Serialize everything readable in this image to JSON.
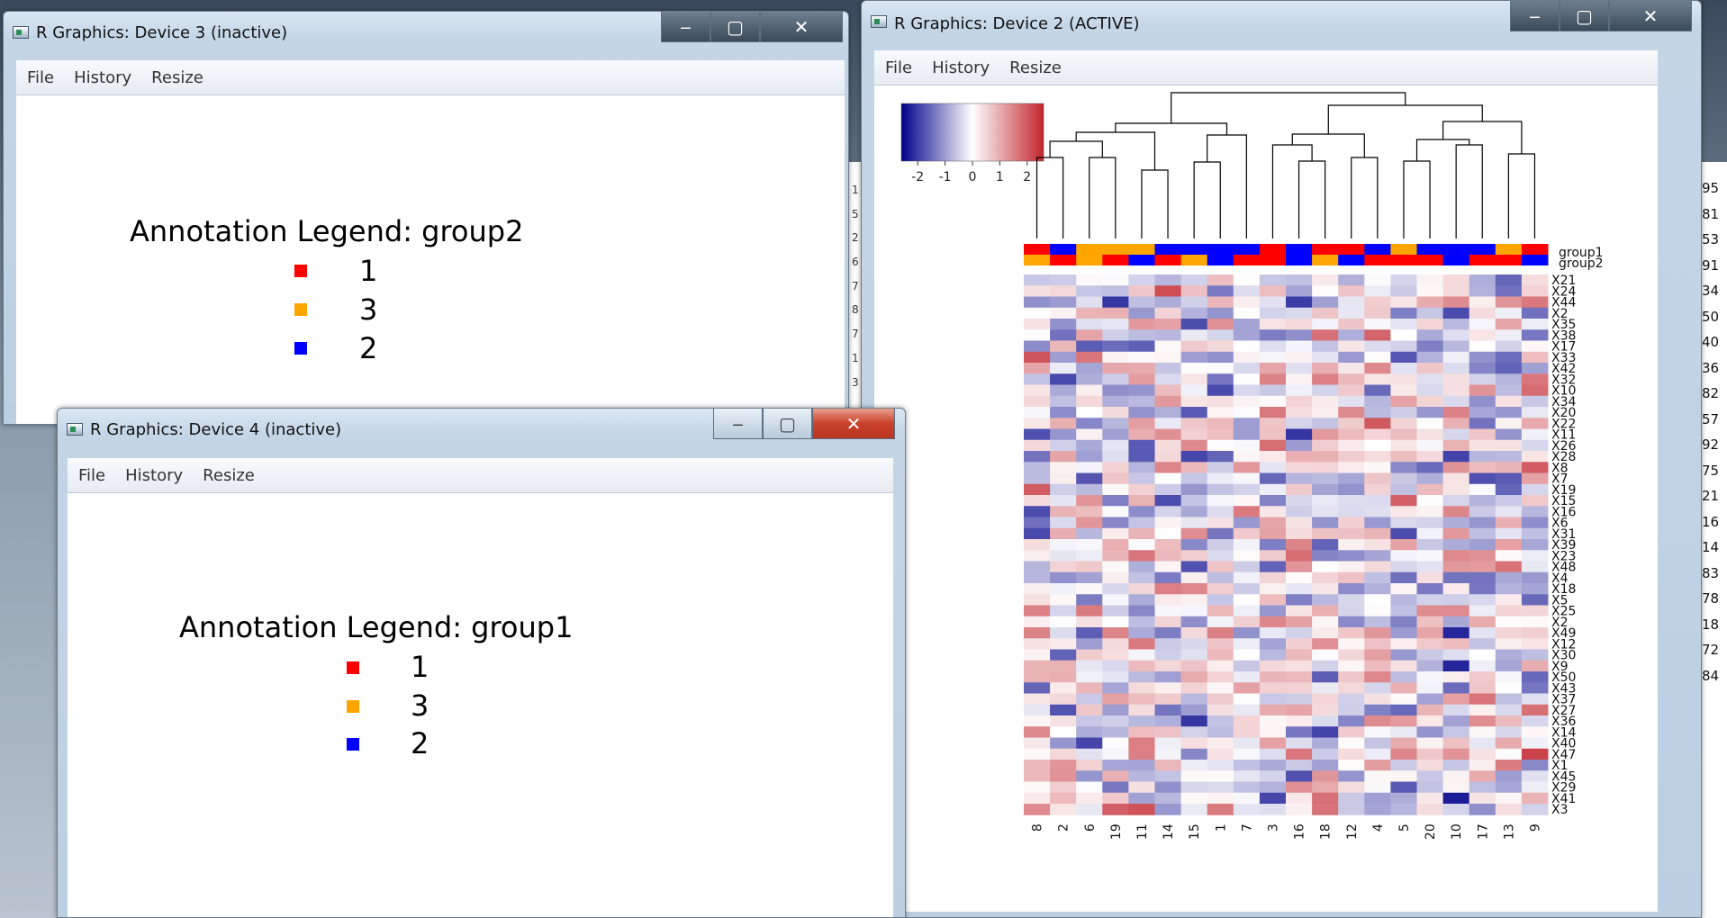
{
  "windows": {
    "device3": {
      "title": "R Graphics: Device 3 (inactive)",
      "menu": [
        "File",
        "History",
        "Resize"
      ],
      "legend": {
        "title": "Annotation Legend: group2",
        "items": [
          {
            "label": "1",
            "color": "#ff0000"
          },
          {
            "label": "3",
            "color": "#ffa500"
          },
          {
            "label": "2",
            "color": "#0000ff"
          }
        ]
      }
    },
    "device4": {
      "title": "R Graphics: Device 4 (inactive)",
      "menu": [
        "File",
        "History",
        "Resize"
      ],
      "legend": {
        "title": "Annotation Legend: group1",
        "items": [
          {
            "label": "1",
            "color": "#ff0000"
          },
          {
            "label": "3",
            "color": "#ffa500"
          },
          {
            "label": "2",
            "color": "#0000ff"
          }
        ]
      }
    },
    "device2": {
      "title": "R Graphics: Device 2 (ACTIVE)",
      "menu": [
        "File",
        "History",
        "Resize"
      ]
    }
  },
  "background_numbers_right": [
    "95",
    "81",
    "53",
    "91",
    "34",
    "50",
    "40",
    "36",
    "82",
    "57",
    "92",
    "75",
    "21",
    "16",
    "14",
    "83",
    "78",
    "18",
    "72",
    "84"
  ],
  "background_numbers_left": [
    "1",
    "5",
    "2",
    "6",
    "7",
    "8",
    "7",
    "1",
    "3"
  ],
  "chart_data": {
    "type": "heatmap",
    "color_scale": {
      "ticks": [
        -2,
        -1,
        0,
        1,
        2
      ],
      "low": "#00008b",
      "mid": "#ffffff",
      "high": "#c2262e"
    },
    "columns": [
      "8",
      "2",
      "6",
      "19",
      "11",
      "14",
      "15",
      "1",
      "7",
      "3",
      "16",
      "18",
      "12",
      "4",
      "5",
      "20",
      "10",
      "17",
      "13",
      "9"
    ],
    "rows": [
      "X21",
      "X24",
      "X44",
      "X2",
      "X35",
      "X38",
      "X17",
      "X33",
      "X42",
      "X32",
      "X10",
      "X34",
      "X20",
      "X22",
      "X11",
      "X26",
      "X28",
      "X8",
      "X7",
      "X19",
      "X15",
      "X16",
      "X6",
      "X31",
      "X39",
      "X23",
      "X48",
      "X4",
      "X18",
      "X5",
      "X25",
      "X2",
      "X49",
      "X12",
      "X30",
      "X9",
      "X50",
      "X43",
      "X37",
      "X27",
      "X36",
      "X14",
      "X40",
      "X47",
      "X1",
      "X45",
      "X29",
      "X41",
      "X3"
    ],
    "annotations": {
      "group1": {
        "label": "group1",
        "values": [
          "1",
          "2",
          "3",
          "3",
          "3",
          "2",
          "2",
          "2",
          "2",
          "1",
          "2",
          "1",
          "1",
          "2",
          "3",
          "2",
          "2",
          "2",
          "3",
          "1"
        ]
      },
      "group2": {
        "label": "group2",
        "values": [
          "3",
          "1",
          "3",
          "1",
          "2",
          "1",
          "3",
          "2",
          "1",
          "1",
          "2",
          "3",
          "2",
          "1",
          "1",
          "1",
          "2",
          "1",
          "1",
          "2"
        ]
      }
    },
    "annotation_colors": {
      "1": "#ff0000",
      "2": "#0000ff",
      "3": "#ffa500"
    }
  }
}
